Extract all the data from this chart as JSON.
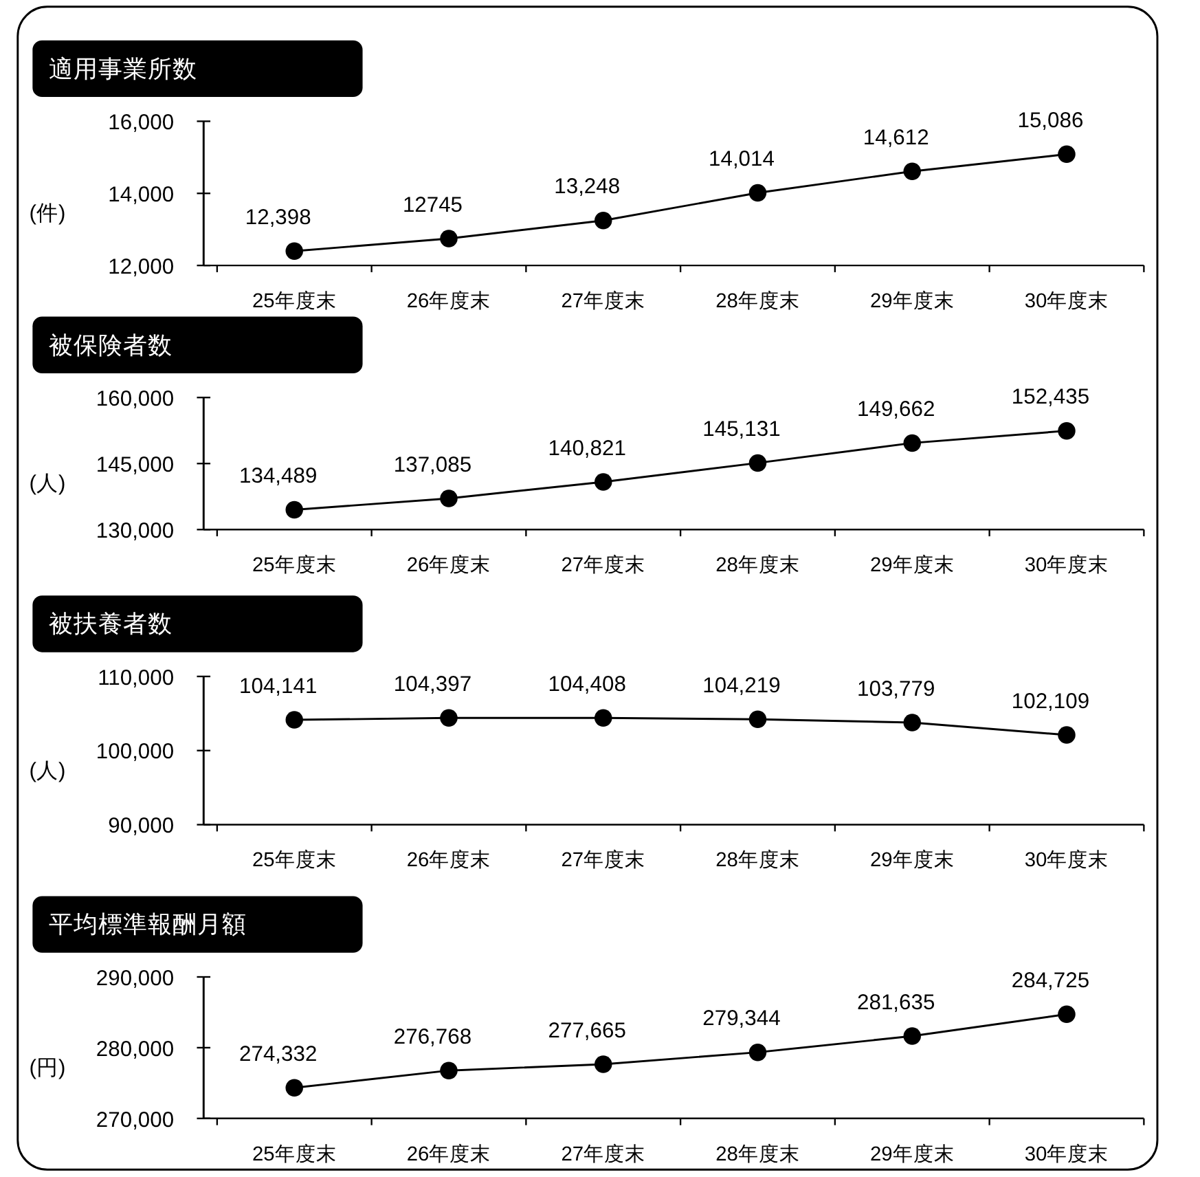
{
  "chart_data": [
    {
      "type": "line",
      "title": "適用事業所数",
      "ylabel": "(件)",
      "categories": [
        "25年度末",
        "26年度末",
        "27年度末",
        "28年度末",
        "29年度末",
        "30年度末"
      ],
      "values": [
        12398,
        12745,
        13248,
        14014,
        14612,
        15086
      ],
      "value_labels": [
        "12,398",
        "12745",
        "13,248",
        "14,014",
        "14,612",
        "15,086"
      ],
      "color": "#000000",
      "marker": "circle",
      "ylim": [
        12000,
        16000
      ],
      "yticks": [
        {
          "value": 12000,
          "label": "12,000"
        },
        {
          "value": 14000,
          "label": "14,000"
        },
        {
          "value": 16000,
          "label": "16,000"
        }
      ]
    },
    {
      "type": "line",
      "title": "被保険者数",
      "ylabel": "(人)",
      "categories": [
        "25年度末",
        "26年度末",
        "27年度末",
        "28年度末",
        "29年度末",
        "30年度末"
      ],
      "values": [
        134489,
        137085,
        140821,
        145131,
        149662,
        152435
      ],
      "value_labels": [
        "134,489",
        "137,085",
        "140,821",
        "145,131",
        "149,662",
        "152,435"
      ],
      "color": "#000000",
      "marker": "circle",
      "ylim": [
        130000,
        160000
      ],
      "yticks": [
        {
          "value": 130000,
          "label": "130,000"
        },
        {
          "value": 145000,
          "label": "145,000"
        },
        {
          "value": 160000,
          "label": "160,000"
        }
      ]
    },
    {
      "type": "line",
      "title": "被扶養者数",
      "ylabel": "(人)",
      "categories": [
        "25年度末",
        "26年度末",
        "27年度末",
        "28年度末",
        "29年度末",
        "30年度末"
      ],
      "values": [
        104141,
        104397,
        104408,
        104219,
        103779,
        102109
      ],
      "value_labels": [
        "104,141",
        "104,397",
        "104,408",
        "104,219",
        "103,779",
        "102,109"
      ],
      "color": "#000000",
      "marker": "circle",
      "ylim": [
        90000,
        110000
      ],
      "yticks": [
        {
          "value": 90000,
          "label": "90,000"
        },
        {
          "value": 100000,
          "label": "100,000"
        },
        {
          "value": 110000,
          "label": "110,000"
        }
      ]
    },
    {
      "type": "line",
      "title": "平均標準報酬月額",
      "ylabel": "(円)",
      "categories": [
        "25年度末",
        "26年度末",
        "27年度末",
        "28年度末",
        "29年度末",
        "30年度末"
      ],
      "values": [
        274332,
        276768,
        277665,
        279344,
        281635,
        284725
      ],
      "value_labels": [
        "274,332",
        "276,768",
        "277,665",
        "279,344",
        "281,635",
        "284,725"
      ],
      "color": "#000000",
      "marker": "circle",
      "ylim": [
        270000,
        290000
      ],
      "yticks": [
        {
          "value": 270000,
          "label": "270,000"
        },
        {
          "value": 280000,
          "label": "280,000"
        },
        {
          "value": 290000,
          "label": "290,000"
        }
      ]
    }
  ]
}
